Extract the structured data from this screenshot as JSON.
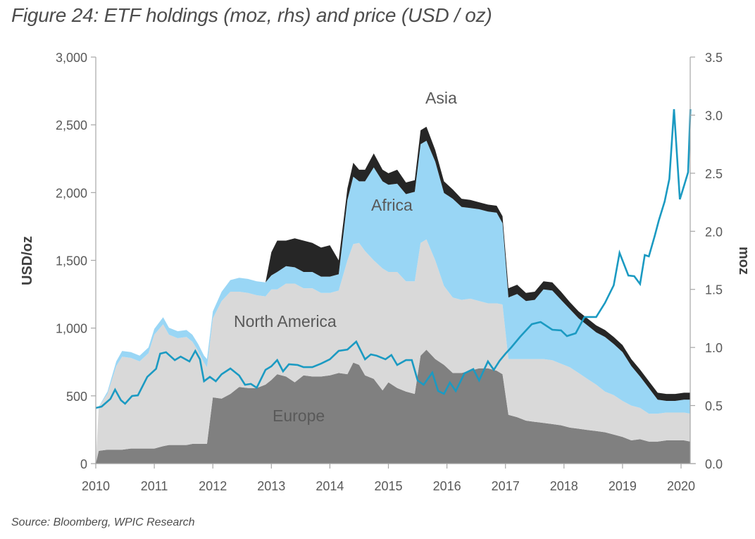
{
  "title": "Figure 24: ETF holdings (moz, rhs) and price (USD / oz)",
  "source": "Source: Bloomberg, WPIC Research",
  "chart_data": {
    "type": "area",
    "title": "Figure 24: ETF holdings (moz, rhs) and price (USD / oz)",
    "xlabel": "",
    "ylabel": "USD/oz",
    "y2label": "moz",
    "xlim": [
      2010,
      2020.2
    ],
    "ylim": [
      0,
      3000
    ],
    "y2lim": [
      0,
      3.5
    ],
    "x_ticks": [
      "2010",
      "2011",
      "2012",
      "2013",
      "2014",
      "2015",
      "2016",
      "2017",
      "2018",
      "2019",
      "2020"
    ],
    "y_ticks": [
      "0",
      "500",
      "1,000",
      "1,500",
      "2,000",
      "2,500",
      "3,000"
    ],
    "y2_ticks": [
      "0.0",
      "0.5",
      "1.0",
      "1.5",
      "2.0",
      "2.5",
      "3.0",
      "3.5"
    ],
    "grid": false,
    "legend": "inline-labels",
    "colors": {
      "europe": "#808080",
      "north_america": "#d9d9d9",
      "africa": "#99d6f5",
      "asia": "#262626",
      "price": "#1b9ac2",
      "axis": "#a6a6a6"
    },
    "stacked_series": {
      "axis": "right",
      "unit": "moz",
      "x": [
        2010.0,
        2010.05,
        2010.2,
        2010.35,
        2010.45,
        2010.6,
        2010.75,
        2010.9,
        2011.0,
        2011.15,
        2011.25,
        2011.4,
        2011.55,
        2011.65,
        2011.75,
        2011.85,
        2011.9,
        2012.0,
        2012.15,
        2012.3,
        2012.45,
        2012.6,
        2012.75,
        2012.9,
        2013.0,
        2013.1,
        2013.25,
        2013.4,
        2013.55,
        2013.7,
        2013.85,
        2014.0,
        2014.15,
        2014.3,
        2014.4,
        2014.5,
        2014.6,
        2014.75,
        2014.9,
        2015.0,
        2015.15,
        2015.3,
        2015.45,
        2015.55,
        2015.65,
        2015.8,
        2015.95,
        2016.1,
        2016.25,
        2016.4,
        2016.55,
        2016.7,
        2016.85,
        2016.95,
        2017.05,
        2017.2,
        2017.35,
        2017.5,
        2017.65,
        2017.8,
        2017.95,
        2018.1,
        2018.25,
        2018.4,
        2018.55,
        2018.7,
        2018.85,
        2019.0,
        2019.15,
        2019.3,
        2019.45,
        2019.6,
        2019.75,
        2019.9,
        2020.05,
        2020.16
      ],
      "series": [
        {
          "name": "Europe",
          "values": [
            0.0,
            0.11,
            0.12,
            0.12,
            0.12,
            0.13,
            0.13,
            0.13,
            0.13,
            0.15,
            0.16,
            0.16,
            0.16,
            0.17,
            0.17,
            0.17,
            0.17,
            0.57,
            0.56,
            0.6,
            0.66,
            0.65,
            0.65,
            0.68,
            0.72,
            0.77,
            0.75,
            0.7,
            0.76,
            0.75,
            0.75,
            0.76,
            0.78,
            0.77,
            0.87,
            0.85,
            0.76,
            0.73,
            0.63,
            0.7,
            0.65,
            0.62,
            0.6,
            0.93,
            0.98,
            0.9,
            0.85,
            0.78,
            0.78,
            0.8,
            0.82,
            0.82,
            0.8,
            0.77,
            0.42,
            0.4,
            0.37,
            0.36,
            0.35,
            0.34,
            0.33,
            0.31,
            0.3,
            0.29,
            0.28,
            0.27,
            0.25,
            0.23,
            0.2,
            0.21,
            0.19,
            0.19,
            0.2,
            0.2,
            0.2,
            0.19
          ]
        },
        {
          "name": "North America",
          "values": [
            0.0,
            0.38,
            0.48,
            0.72,
            0.8,
            0.78,
            0.75,
            0.82,
            0.98,
            1.05,
            0.95,
            0.92,
            0.93,
            0.88,
            0.8,
            0.7,
            0.66,
            0.68,
            0.84,
            0.88,
            0.82,
            0.82,
            0.8,
            0.76,
            0.78,
            0.73,
            0.8,
            0.85,
            0.75,
            0.76,
            0.72,
            0.71,
            0.71,
            0.98,
            1.02,
            1.05,
            1.07,
            1.02,
            1.05,
            0.95,
            1.0,
            0.95,
            0.97,
            0.97,
            0.95,
            0.85,
            0.68,
            0.65,
            0.63,
            0.62,
            0.58,
            0.56,
            0.58,
            0.6,
            0.48,
            0.5,
            0.53,
            0.54,
            0.55,
            0.55,
            0.53,
            0.52,
            0.48,
            0.44,
            0.4,
            0.35,
            0.34,
            0.31,
            0.3,
            0.27,
            0.24,
            0.24,
            0.24,
            0.24,
            0.24,
            0.24
          ]
        },
        {
          "name": "Africa",
          "values": [
            0.0,
            0.0,
            0.02,
            0.04,
            0.05,
            0.05,
            0.05,
            0.05,
            0.05,
            0.06,
            0.06,
            0.06,
            0.06,
            0.06,
            0.06,
            0.06,
            0.07,
            0.06,
            0.08,
            0.1,
            0.12,
            0.12,
            0.12,
            0.12,
            0.12,
            0.15,
            0.15,
            0.14,
            0.14,
            0.14,
            0.14,
            0.14,
            0.14,
            0.52,
            0.58,
            0.53,
            0.6,
            0.8,
            0.75,
            0.75,
            0.76,
            0.75,
            0.77,
            0.85,
            0.85,
            0.85,
            0.8,
            0.85,
            0.8,
            0.78,
            0.79,
            0.79,
            0.78,
            0.7,
            0.53,
            0.56,
            0.5,
            0.51,
            0.6,
            0.6,
            0.55,
            0.5,
            0.47,
            0.46,
            0.45,
            0.47,
            0.44,
            0.42,
            0.34,
            0.27,
            0.22,
            0.12,
            0.1,
            0.1,
            0.11,
            0.12
          ]
        },
        {
          "name": "Asia",
          "values": [
            0.0,
            0.0,
            0.0,
            0.0,
            0.0,
            0.0,
            0.0,
            0.0,
            0.0,
            0.0,
            0.0,
            0.0,
            0.0,
            0.0,
            0.0,
            0.0,
            0.0,
            0.0,
            0.0,
            0.0,
            0.0,
            0.0,
            0.0,
            0.0,
            0.2,
            0.27,
            0.22,
            0.25,
            0.27,
            0.25,
            0.25,
            0.27,
            0.12,
            0.1,
            0.12,
            0.1,
            0.1,
            0.12,
            0.1,
            0.1,
            0.12,
            0.1,
            0.1,
            0.12,
            0.12,
            0.1,
            0.1,
            0.08,
            0.07,
            0.07,
            0.06,
            0.06,
            0.06,
            0.06,
            0.08,
            0.08,
            0.07,
            0.07,
            0.07,
            0.07,
            0.07,
            0.06,
            0.06,
            0.06,
            0.06,
            0.06,
            0.06,
            0.06,
            0.06,
            0.06,
            0.06,
            0.06,
            0.06,
            0.06,
            0.06,
            0.06
          ]
        }
      ]
    },
    "line_series": {
      "name": "Price",
      "axis": "left",
      "unit": "USD/oz",
      "x": [
        2010.0,
        2010.1,
        2010.25,
        2010.33,
        2010.43,
        2010.5,
        2010.62,
        2010.72,
        2010.88,
        2011.03,
        2011.1,
        2011.2,
        2011.35,
        2011.45,
        2011.6,
        2011.7,
        2011.78,
        2011.85,
        2011.95,
        2012.05,
        2012.15,
        2012.3,
        2012.45,
        2012.55,
        2012.65,
        2012.75,
        2012.9,
        2013.0,
        2013.1,
        2013.2,
        2013.3,
        2013.45,
        2013.55,
        2013.7,
        2013.85,
        2014.0,
        2014.15,
        2014.3,
        2014.45,
        2014.6,
        2014.7,
        2014.8,
        2014.95,
        2015.05,
        2015.15,
        2015.3,
        2015.4,
        2015.5,
        2015.6,
        2015.75,
        2015.85,
        2015.95,
        2016.05,
        2016.15,
        2016.3,
        2016.45,
        2016.55,
        2016.7,
        2016.8,
        2016.9,
        2017.0,
        2017.1,
        2017.25,
        2017.45,
        2017.6,
        2017.8,
        2017.95,
        2018.05,
        2018.2,
        2018.35,
        2018.55,
        2018.7,
        2018.85,
        2018.95,
        2019.1,
        2019.2,
        2019.3,
        2019.38,
        2019.45,
        2019.55,
        2019.62,
        2019.72,
        2019.8,
        2019.88,
        2019.98,
        2020.05,
        2020.12,
        2020.16
      ],
      "values": [
        411,
        421,
        478,
        546,
        468,
        442,
        499,
        504,
        640,
        700,
        811,
        822,
        764,
        790,
        754,
        832,
        770,
        608,
        640,
        608,
        660,
        702,
        650,
        582,
        588,
        560,
        692,
        718,
        764,
        681,
        733,
        728,
        712,
        712,
        738,
        770,
        832,
        842,
        900,
        770,
        806,
        796,
        770,
        801,
        728,
        764,
        764,
        614,
        582,
        671,
        536,
        515,
        598,
        536,
        666,
        697,
        614,
        754,
        692,
        759,
        811,
        858,
        936,
        1029,
        1045,
        988,
        983,
        941,
        962,
        1082,
        1082,
        1186,
        1316,
        1555,
        1388,
        1383,
        1326,
        1539,
        1529,
        1680,
        1794,
        1934,
        2101,
        2615,
        1950,
        2050,
        2150,
        2615
      ]
    },
    "annotations": [
      "Asia",
      "Africa",
      "North America",
      "Europe"
    ]
  }
}
